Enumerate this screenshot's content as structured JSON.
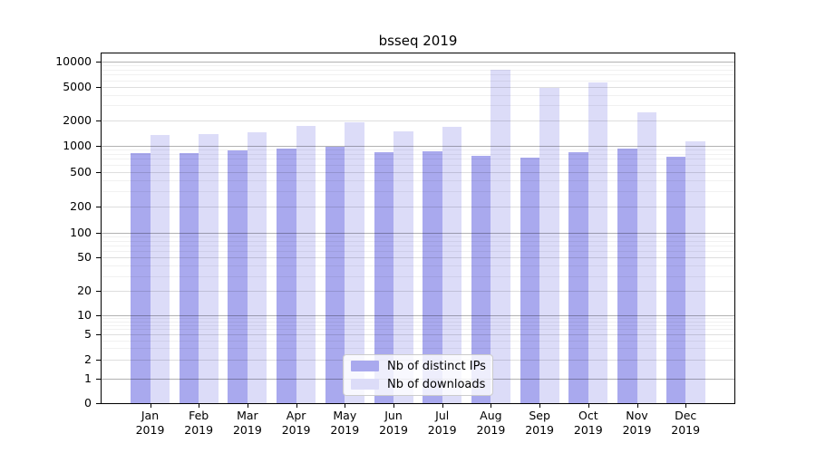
{
  "chart_data": {
    "type": "bar",
    "title": "bsseq 2019",
    "categories": [
      "Jan",
      "Feb",
      "Mar",
      "Apr",
      "May",
      "Jun",
      "Jul",
      "Aug",
      "Sep",
      "Oct",
      "Nov",
      "Dec"
    ],
    "category_year": "2019",
    "series": [
      {
        "name": "Nb of distinct IPs",
        "color": "#a9a9ee",
        "values": [
          815,
          815,
          870,
          920,
          955,
          845,
          855,
          755,
          725,
          840,
          930,
          750
        ]
      },
      {
        "name": "Nb of downloads",
        "color": "#dcdcf8",
        "values": [
          1330,
          1370,
          1450,
          1700,
          1890,
          1470,
          1670,
          7950,
          4860,
          5600,
          2470,
          1130
        ]
      }
    ],
    "xlabel": "",
    "ylabel": "",
    "yscale": "symlog",
    "ylim": [
      0,
      12500
    ],
    "yticks": [
      0,
      1,
      2,
      5,
      10,
      20,
      50,
      100,
      200,
      500,
      1000,
      2000,
      5000,
      10000
    ],
    "grid": true,
    "legend_position": "lower center"
  }
}
